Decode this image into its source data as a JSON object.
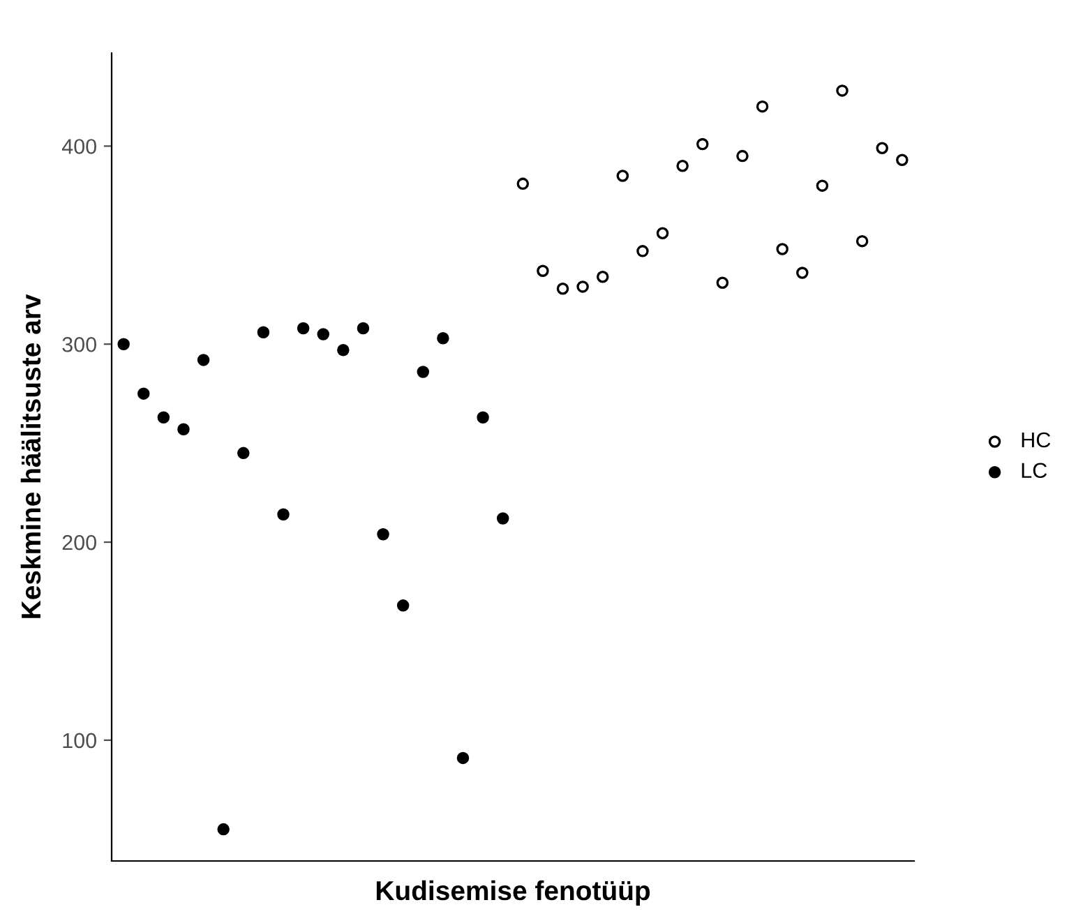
{
  "chart_data": {
    "type": "scatter",
    "xlabel": "Kudisemise fenotüüp",
    "ylabel": "Keskmine häälitsuste arv",
    "categories": [
      null,
      null,
      null,
      null,
      null,
      null,
      null,
      null,
      null,
      null,
      null,
      null,
      null,
      null,
      null,
      null,
      null,
      null,
      null,
      null,
      null,
      null,
      null,
      null,
      null,
      null,
      null,
      null,
      null,
      null,
      null,
      null,
      null,
      null,
      null,
      null,
      null,
      null,
      null,
      null
    ],
    "series": [
      {
        "name": "HC",
        "color": "#ffffff",
        "values": [
          null,
          null,
          null,
          null,
          null,
          null,
          null,
          null,
          null,
          null,
          null,
          null,
          null,
          null,
          null,
          null,
          null,
          null,
          null,
          null,
          381,
          337,
          328,
          329,
          334,
          385,
          347,
          356,
          390,
          401,
          331,
          395,
          420,
          348,
          336,
          380,
          428,
          352,
          399,
          393
        ]
      },
      {
        "name": "LC",
        "color": "#000000",
        "values": [
          300,
          275,
          263,
          257,
          292,
          55,
          245,
          306,
          214,
          308,
          305,
          297,
          308,
          204,
          168,
          286,
          303,
          91,
          263,
          212,
          null,
          null,
          null,
          null,
          null,
          null,
          null,
          null,
          null,
          null,
          null,
          null,
          null,
          null,
          null,
          null,
          null,
          null,
          null,
          null
        ]
      }
    ],
    "ylim": [
      39,
      447
    ],
    "yticks": [
      100,
      200,
      300,
      400
    ],
    "grid": false,
    "legend": "right",
    "marker": "circle",
    "tick_labels": "y"
  }
}
